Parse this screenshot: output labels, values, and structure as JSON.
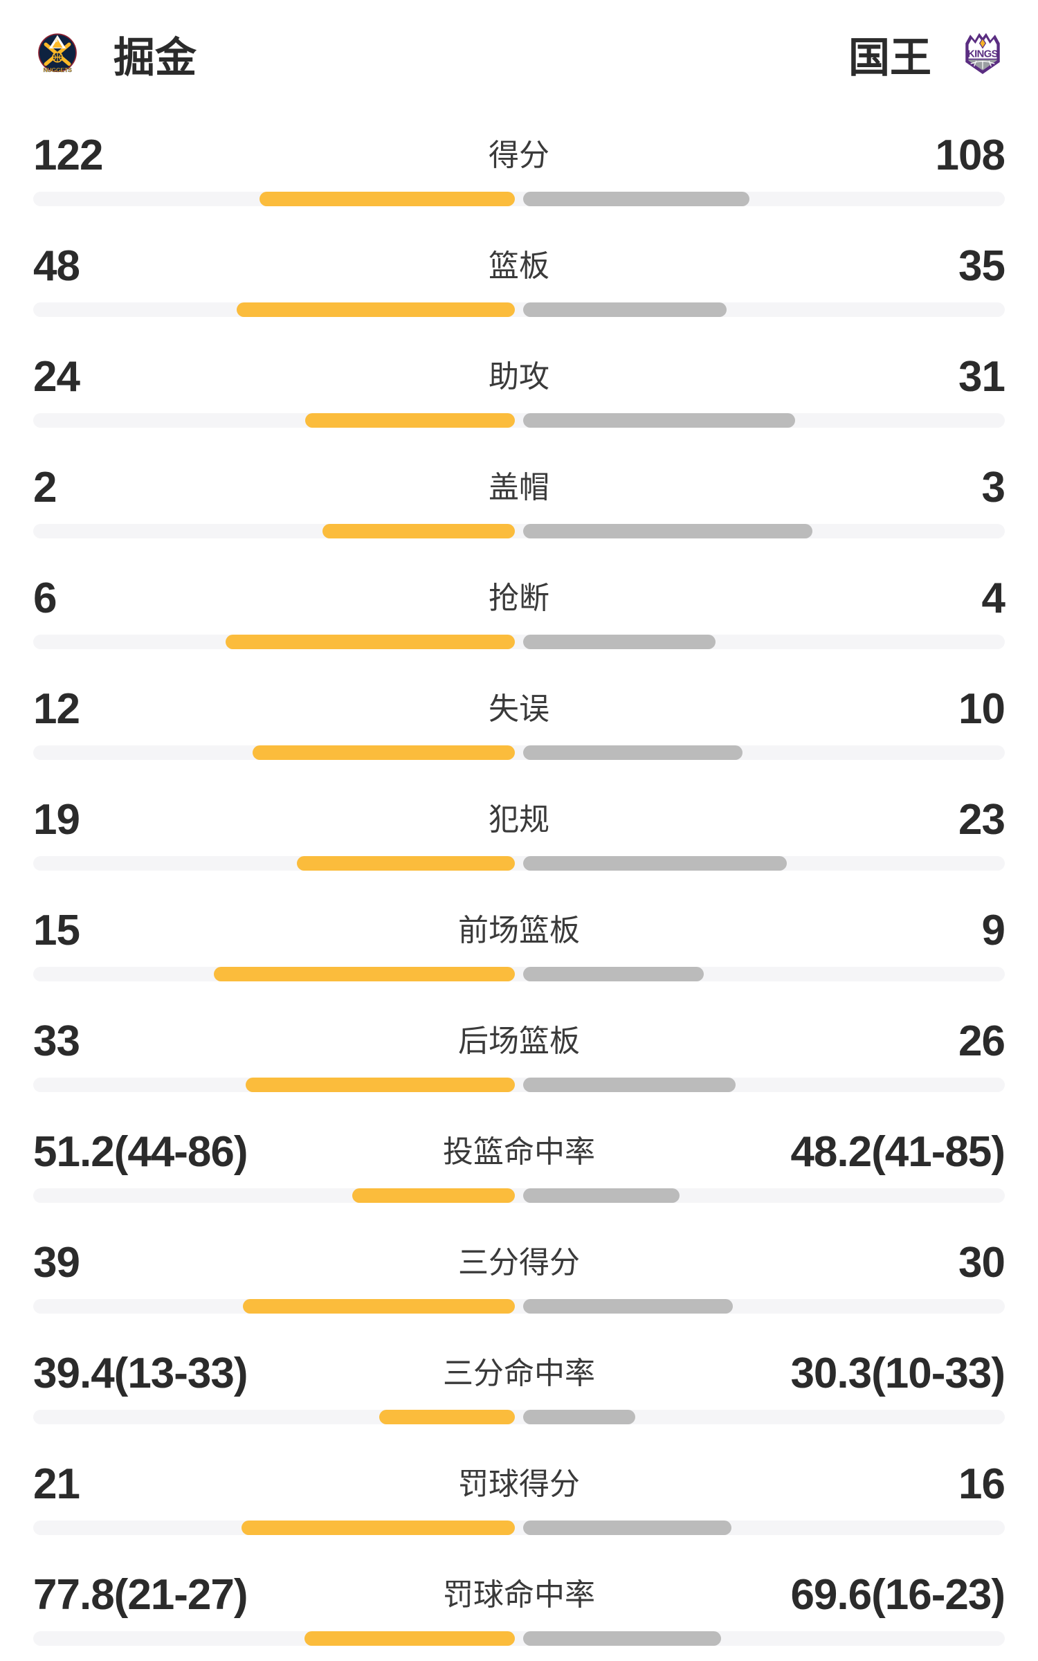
{
  "header": {
    "home": {
      "name": "掘金",
      "icon": "nuggets-logo"
    },
    "away": {
      "name": "国王",
      "icon": "kings-logo"
    }
  },
  "colors": {
    "home_bar": "#fbbc3c",
    "away_bar": "#bbbbbb",
    "bar_track": "#f5f5f7",
    "value_text": "#2b2b2b",
    "label_text": "#3a3a3a",
    "nuggets_navy": "#0e2240",
    "nuggets_gold": "#fdb927",
    "nuggets_maroon": "#8b2131",
    "kings_purple": "#5a2d81",
    "kings_gray": "#9a9ea1",
    "kings_gold": "#f5b425"
  },
  "chart_data": {
    "type": "bar",
    "orientation": "horizontal-paired",
    "description": "Team stats comparison, bars grow outward from center; left series Nuggets (yellow), right series Kings (gray)",
    "series": [
      {
        "name": "掘金"
      },
      {
        "name": "国王"
      }
    ],
    "rows": [
      {
        "label": "得分",
        "home": "122",
        "away": "108",
        "home_frac": 53.0,
        "away_frac": 47.0
      },
      {
        "label": "篮板",
        "home": "48",
        "away": "35",
        "home_frac": 57.8,
        "away_frac": 42.2
      },
      {
        "label": "助攻",
        "home": "24",
        "away": "31",
        "home_frac": 43.6,
        "away_frac": 56.4
      },
      {
        "label": "盖帽",
        "home": "2",
        "away": "3",
        "home_frac": 40.0,
        "away_frac": 60.0
      },
      {
        "label": "抢断",
        "home": "6",
        "away": "4",
        "home_frac": 60.0,
        "away_frac": 40.0
      },
      {
        "label": "失误",
        "home": "12",
        "away": "10",
        "home_frac": 54.5,
        "away_frac": 45.5
      },
      {
        "label": "犯规",
        "home": "19",
        "away": "23",
        "home_frac": 45.2,
        "away_frac": 54.8
      },
      {
        "label": "前场篮板",
        "home": "15",
        "away": "9",
        "home_frac": 62.5,
        "away_frac": 37.5
      },
      {
        "label": "后场篮板",
        "home": "33",
        "away": "26",
        "home_frac": 55.9,
        "away_frac": 44.1
      },
      {
        "label": "投篮命中率",
        "home": "51.2(44-86)",
        "away": "48.2(41-85)",
        "home_frac": 33.7,
        "away_frac": 32.4
      },
      {
        "label": "三分得分",
        "home": "39",
        "away": "30",
        "home_frac": 56.5,
        "away_frac": 43.5
      },
      {
        "label": "三分命中率",
        "home": "39.4(13-33)",
        "away": "30.3(10-33)",
        "home_frac": 28.1,
        "away_frac": 23.3
      },
      {
        "label": "罚球得分",
        "home": "21",
        "away": "16",
        "home_frac": 56.8,
        "away_frac": 43.2
      },
      {
        "label": "罚球命中率",
        "home": "77.8(21-27)",
        "away": "69.6(16-23)",
        "home_frac": 43.7,
        "away_frac": 41.1
      }
    ]
  }
}
